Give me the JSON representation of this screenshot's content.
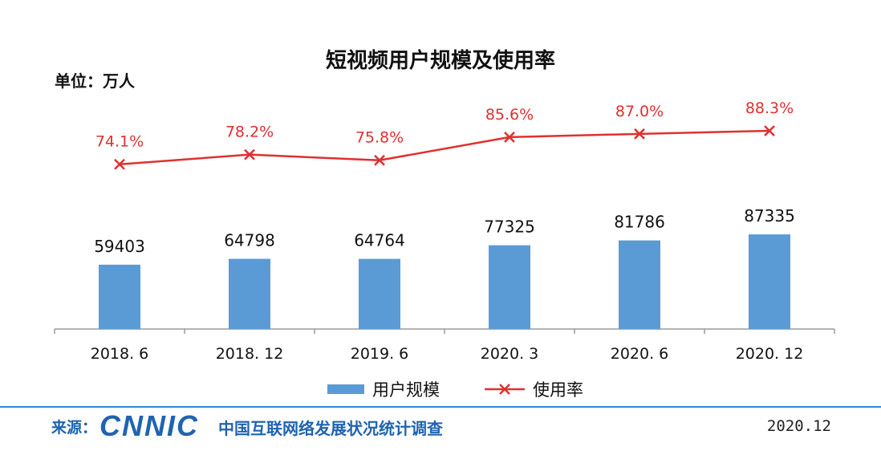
{
  "chart_data": {
    "type": "bar",
    "title": "短视频用户规模及使用率",
    "unit_label": "单位：万人",
    "categories": [
      "2018. 6",
      "2018. 12",
      "2019. 6",
      "2020. 3",
      "2020. 6",
      "2020. 12"
    ],
    "series": [
      {
        "name": "用户规模",
        "type": "bar",
        "color": "#5b9bd5",
        "values": [
          59403,
          64798,
          64764,
          77325,
          81786,
          87335
        ],
        "labels": [
          "59403",
          "64798",
          "64764",
          "77325",
          "81786",
          "87335"
        ]
      },
      {
        "name": "使用率",
        "type": "line",
        "color": "#e03030",
        "values": [
          74.1,
          78.2,
          75.8,
          85.6,
          87.0,
          88.3
        ],
        "labels": [
          "74.1%",
          "78.2%",
          "75.8%",
          "85.6%",
          "87.0%",
          "88.3%"
        ]
      }
    ],
    "bar_ylim": [
      0,
      200000
    ],
    "rate_ylim": [
      0,
      100
    ],
    "legend_position": "bottom"
  },
  "footer": {
    "source_label": "来源：",
    "logo_text": "CNNIC",
    "source_name": "中国互联网络发展状况统计调查",
    "date": "2020.12"
  }
}
